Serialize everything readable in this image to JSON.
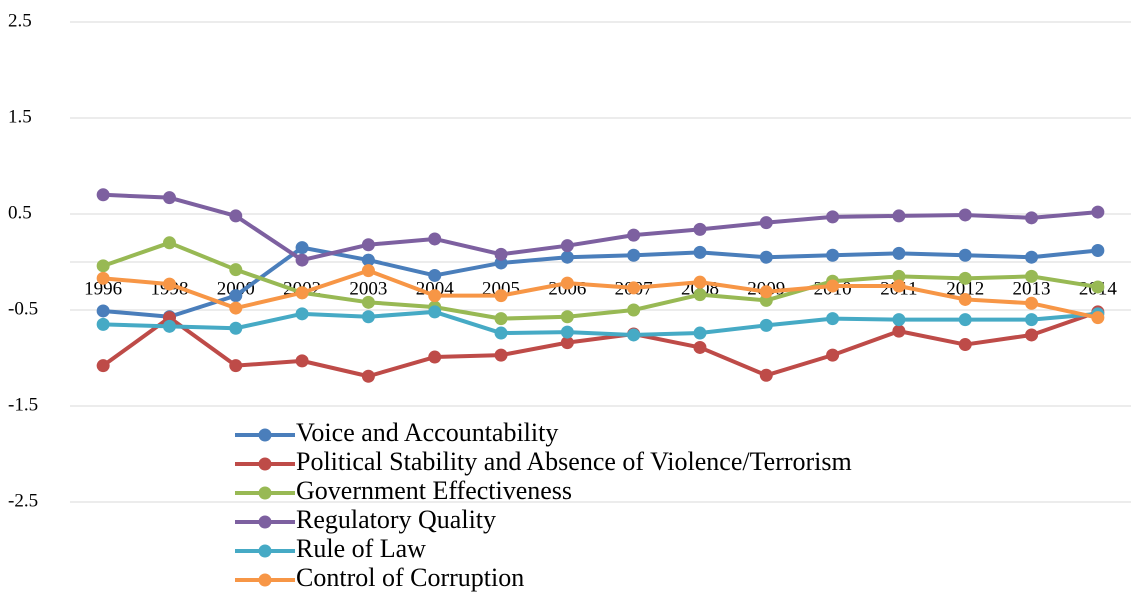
{
  "chart_data": {
    "type": "line",
    "categories": [
      "1996",
      "1998",
      "2000",
      "2002",
      "2003",
      "2004",
      "2005",
      "2006",
      "2007",
      "2008",
      "2009",
      "2010",
      "2011",
      "2012",
      "2013",
      "2014"
    ],
    "series": [
      {
        "name": "Voice and Accountability",
        "color": "#4a7ebb",
        "values": [
          -0.51,
          -0.57,
          -0.35,
          0.15,
          0.02,
          -0.14,
          -0.01,
          0.05,
          0.07,
          0.1,
          0.05,
          0.07,
          0.09,
          0.07,
          0.05,
          0.12
        ]
      },
      {
        "name": "Political Stability and Absence of Violence/Terrorism",
        "color": "#be4b48",
        "values": [
          -1.08,
          -0.58,
          -1.08,
          -1.03,
          -1.19,
          -0.99,
          -0.97,
          -0.84,
          -0.75,
          -0.89,
          -1.18,
          -0.97,
          -0.72,
          -0.86,
          -0.76,
          -0.52
        ]
      },
      {
        "name": "Government Effectiveness",
        "color": "#98b954",
        "values": [
          -0.04,
          0.2,
          -0.08,
          -0.32,
          -0.42,
          -0.47,
          -0.59,
          -0.57,
          -0.5,
          -0.34,
          -0.4,
          -0.2,
          -0.15,
          -0.17,
          -0.15,
          -0.26
        ]
      },
      {
        "name": "Regulatory Quality",
        "color": "#7d60a0",
        "values": [
          0.7,
          0.67,
          0.48,
          0.02,
          0.18,
          0.24,
          0.08,
          0.17,
          0.28,
          0.34,
          0.41,
          0.47,
          0.48,
          0.49,
          0.46,
          0.52
        ]
      },
      {
        "name": "Rule of Law",
        "color": "#46aac5",
        "values": [
          -0.65,
          -0.67,
          -0.69,
          -0.54,
          -0.57,
          -0.52,
          -0.74,
          -0.73,
          -0.76,
          -0.74,
          -0.66,
          -0.59,
          -0.6,
          -0.6,
          -0.6,
          -0.54
        ]
      },
      {
        "name": "Control of Corruption",
        "color": "#f79646",
        "values": [
          -0.17,
          -0.23,
          -0.48,
          -0.32,
          -0.09,
          -0.35,
          -0.35,
          -0.22,
          -0.27,
          -0.21,
          -0.31,
          -0.25,
          -0.25,
          -0.39,
          -0.43,
          -0.58
        ]
      }
    ],
    "ylim": [
      -2.5,
      2.5
    ],
    "yticks": [
      -2.5,
      -1.5,
      -0.5,
      0.5,
      1.5,
      2.5
    ],
    "grid": true,
    "legend": "bottom"
  }
}
